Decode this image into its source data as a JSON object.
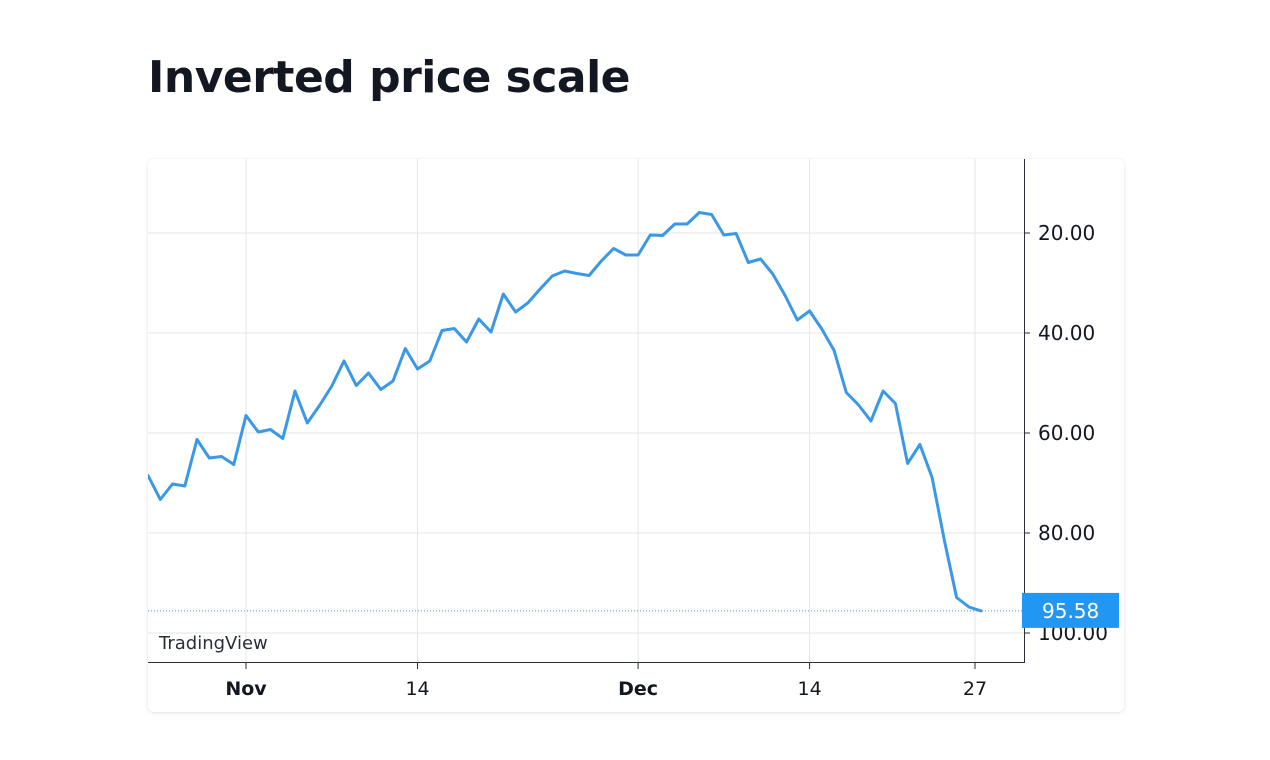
{
  "page": {
    "title": "Inverted price scale"
  },
  "watermark": "TradingView",
  "colors": {
    "line": "#3a98e6",
    "grid": "#e1e6ea",
    "axis": "#2a2e39",
    "label_bg": "#2196f3"
  },
  "chart_data": {
    "type": "line",
    "title": "Inverted price scale",
    "y_axis": {
      "inverted": true,
      "range": [
        5,
        106
      ],
      "ticks": [
        "20.00",
        "40.00",
        "60.00",
        "80.00",
        "100.00"
      ],
      "side": "right"
    },
    "x_axis": {
      "range": [
        0,
        71.5
      ],
      "ticks": [
        {
          "label": "Nov",
          "x": 8,
          "bold": true
        },
        {
          "label": "14",
          "x": 22,
          "bold": false
        },
        {
          "label": "Dec",
          "x": 40,
          "bold": true
        },
        {
          "label": "14",
          "x": 54,
          "bold": false
        },
        {
          "label": "27",
          "x": 67.5,
          "bold": false
        }
      ]
    },
    "grid": true,
    "last_value_label": "95.58",
    "series": [
      {
        "values": [
          68.5,
          73.3,
          70.2,
          70.6,
          61.3,
          65.0,
          64.7,
          66.3,
          56.5,
          59.8,
          59.3,
          61.1,
          51.6,
          58.0,
          54.5,
          50.6,
          45.6,
          50.5,
          48.0,
          51.3,
          49.6,
          43.1,
          47.2,
          45.6,
          39.5,
          39.1,
          41.8,
          37.2,
          39.8,
          32.2,
          35.8,
          34.0,
          31.2,
          28.6,
          27.6,
          28.1,
          28.5,
          25.6,
          23.1,
          24.4,
          24.4,
          20.4,
          20.5,
          18.2,
          18.2,
          15.9,
          16.3,
          20.4,
          20.1,
          25.9,
          25.2,
          28.2,
          32.5,
          37.4,
          35.6,
          39.2,
          43.5,
          51.9,
          54.4,
          57.6,
          51.6,
          54.1,
          66.1,
          62.3,
          68.9,
          81.5,
          92.9,
          94.8,
          95.58
        ]
      }
    ]
  }
}
